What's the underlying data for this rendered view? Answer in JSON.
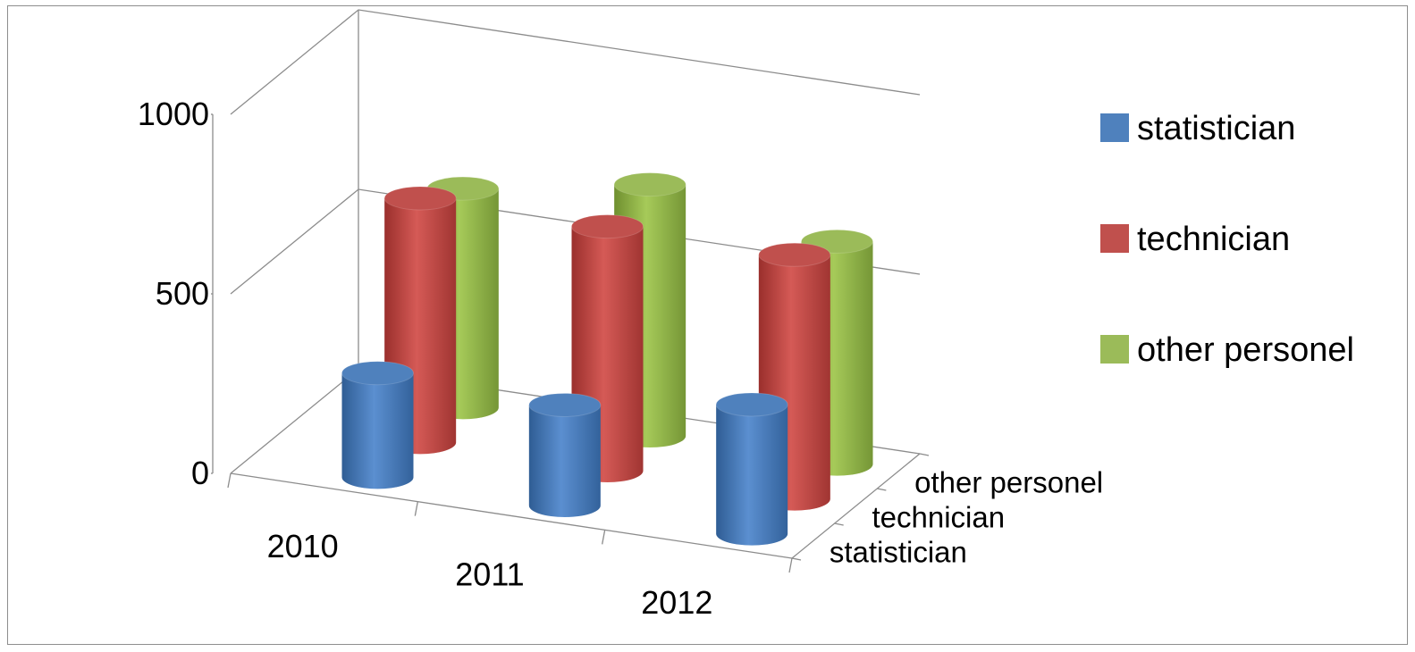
{
  "chart_data": {
    "type": "bar",
    "subtype": "3d-cylinder",
    "title": "",
    "xlabel": "",
    "ylabel": "",
    "categories": [
      "2010",
      "2011",
      "2012"
    ],
    "series": [
      {
        "name": "statistician",
        "values": [
          290,
          280,
          360
        ],
        "color": "#4f81bd"
      },
      {
        "name": "technician",
        "values": [
          680,
          680,
          680
        ],
        "color": "#c0504d"
      },
      {
        "name": "other personel",
        "values": [
          610,
          700,
          620
        ],
        "color": "#9bbb59"
      }
    ],
    "depth_labels": [
      "statistician",
      "technician",
      "other personel"
    ],
    "yticks": [
      "0",
      "500",
      "1000"
    ],
    "ylim": [
      0,
      1000
    ],
    "grid": true,
    "legend_position": "right"
  }
}
